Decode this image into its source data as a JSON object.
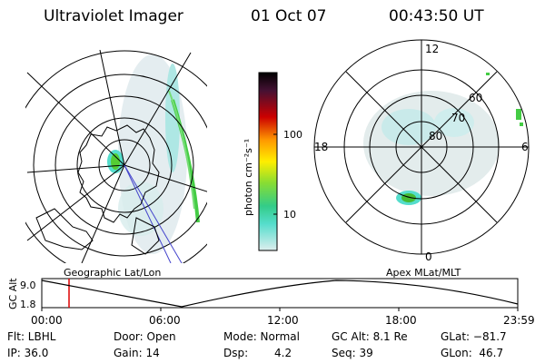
{
  "header": {
    "title": "Ultraviolet Imager",
    "date": "01 Oct 07",
    "time": "00:43:50 UT"
  },
  "left_panel": {
    "label": "Geographic Lat/Lon"
  },
  "right_panel": {
    "label": "Apex MLat/MLT",
    "lat_labels": [
      "60",
      "70",
      "80"
    ],
    "mlt_labels": {
      "top": "12",
      "left": "18",
      "right": "6",
      "bottom": "0"
    }
  },
  "colorbar": {
    "unit_label": "photon cm⁻²s⁻¹",
    "tick_labels": [
      "100",
      "10"
    ]
  },
  "alt_plot": {
    "ylabel": "GC Alt",
    "y_ticks": [
      "9.0",
      "1.8"
    ],
    "x_ticks": [
      "00:00",
      "06:00",
      "12:00",
      "18:00",
      "23:59"
    ]
  },
  "info_rows": [
    [
      "Flt: LBHL",
      "Door: Open",
      "Mode: Normal",
      "GC Alt: 8.1 Re",
      "GLat: −81.7"
    ],
    [
      "IP: 36.0",
      "Gain: 14",
      "Dsp:",
      "4.2",
      "Seq: 39",
      "GLon:  46.7"
    ]
  ],
  "colors": {
    "cb_top": "#000000",
    "cb_mid_red": "#cc0000",
    "cb_orange": "#ff9900",
    "cb_yellow": "#ffee00",
    "cb_green": "#44cc33",
    "cb_cyan": "#55ddcc",
    "cb_pale": "#ddeeee",
    "marker": "#dd0000"
  }
}
